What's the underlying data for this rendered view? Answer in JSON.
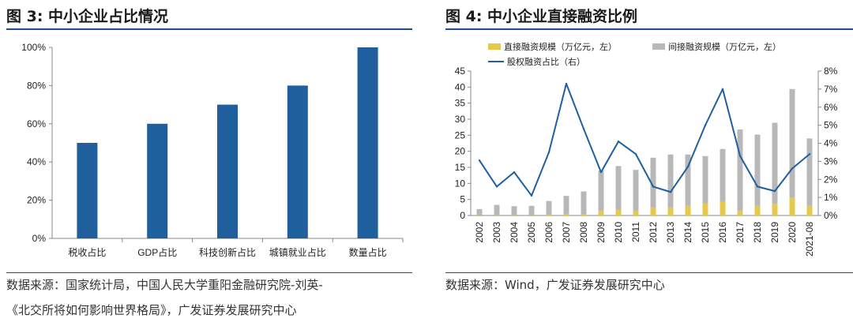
{
  "left": {
    "title": "图 3:  中小企业占比情况",
    "source_line1": "数据来源：国家统计局，中国人民大学重阳金融研究院-刘英-",
    "source_line2": "《北交所将如何影响世界格局》，广发证券发展研究中心",
    "chart_data": {
      "type": "bar",
      "categories": [
        "税收占比",
        "GDP占比",
        "科技创新占比",
        "城镇就业占比",
        "数量占比"
      ],
      "values": [
        50,
        60,
        70,
        80,
        100
      ],
      "ylim": [
        0,
        100
      ],
      "ytick_labels": [
        "0%",
        "20%",
        "40%",
        "60%",
        "80%",
        "100%"
      ],
      "yticks": [
        0,
        20,
        40,
        60,
        80,
        100
      ],
      "bar_color": "#1f5f9e",
      "grid": false
    }
  },
  "right": {
    "title": "图 4:  中小企业直接融资比例",
    "source": "数据来源：Wind，广发证券发展研究中心",
    "chart_data": {
      "type": "bar+line",
      "categories": [
        "2002",
        "2003",
        "2004",
        "2005",
        "2006",
        "2007",
        "2008",
        "2009",
        "2010",
        "2011",
        "2012",
        "2013",
        "2014",
        "2015",
        "2016",
        "2017",
        "2018",
        "2019",
        "2020",
        "2021-08"
      ],
      "series": [
        {
          "name": "直接融资规模（万亿元，左）",
          "type": "stacked-bar",
          "axis": "left",
          "color": "#e6c84a",
          "values": [
            0.1,
            0.1,
            0.1,
            0.1,
            0.2,
            0.5,
            0.3,
            1.5,
            1.8,
            1.5,
            2.5,
            2.5,
            3.0,
            3.8,
            4.2,
            1.5,
            3.0,
            3.6,
            5.5,
            3.0
          ]
        },
        {
          "name": "间接融资规模（万亿元，左）",
          "type": "stacked-bar",
          "axis": "left",
          "color": "#b8b8b8",
          "values": [
            1.9,
            3.2,
            2.8,
            2.9,
            4.3,
            5.6,
            7.2,
            12.5,
            13.6,
            12.7,
            15.5,
            16.5,
            16.0,
            14.7,
            16.5,
            25.3,
            22.2,
            25.3,
            33.9,
            21.0
          ]
        },
        {
          "name": "股权融资占比（右）",
          "type": "line",
          "axis": "right",
          "color": "#1f5f9e",
          "values": [
            3.05,
            1.6,
            2.4,
            1.1,
            3.5,
            7.3,
            4.8,
            2.4,
            4.1,
            3.4,
            1.6,
            1.3,
            2.7,
            5.0,
            7.0,
            3.3,
            1.6,
            1.35,
            2.6,
            3.4
          ]
        }
      ],
      "left_ylim": [
        0,
        45
      ],
      "left_yticks": [
        0,
        5,
        10,
        15,
        20,
        25,
        30,
        35,
        40,
        45
      ],
      "right_ylim": [
        0,
        8
      ],
      "right_yticks": [
        0,
        1,
        2,
        3,
        4,
        5,
        6,
        7,
        8
      ],
      "right_tick_suffix": "%",
      "legend_position": "top",
      "grid": false
    }
  }
}
